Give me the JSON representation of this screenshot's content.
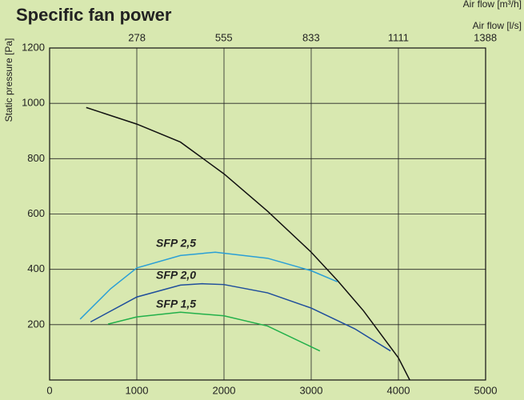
{
  "chart_data": {
    "type": "line",
    "title": "Specific fan power",
    "xlabel": "Air flow [m³/h]",
    "x2label": "Air flow [l/s]",
    "ylabel": "Static pressure [Pa]",
    "xlim": [
      0,
      5000
    ],
    "xticks": [
      0,
      1000,
      2000,
      3000,
      4000,
      5000
    ],
    "x2lim": [
      0,
      1388.9
    ],
    "x2ticks": [
      278,
      555,
      833,
      1111,
      1388
    ],
    "ylim": [
      0,
      1200
    ],
    "yticks": [
      200,
      400,
      600,
      800,
      1000,
      1200
    ],
    "grid": true,
    "series": [
      {
        "color": "#111111",
        "x": [
          420,
          1000,
          1500,
          2000,
          2500,
          3000,
          3300,
          3600,
          4000,
          4130
        ],
        "values": [
          985,
          925,
          860,
          745,
          610,
          462,
          360,
          250,
          80,
          0
        ]
      },
      {
        "name": "SFP 2,5",
        "color": "#2a9fd6",
        "x": [
          350,
          700,
          1000,
          1500,
          1900,
          2500,
          3000,
          3300
        ],
        "values": [
          220,
          330,
          405,
          450,
          462,
          440,
          395,
          355
        ]
      },
      {
        "name": "SFP 2,0",
        "color": "#1f4e9c",
        "x": [
          470,
          1000,
          1500,
          1750,
          2000,
          2500,
          3000,
          3500,
          3910
        ],
        "values": [
          210,
          300,
          343,
          348,
          345,
          315,
          260,
          185,
          105
        ]
      },
      {
        "name": "SFP 1,5",
        "color": "#22b04a",
        "x": [
          670,
          1000,
          1500,
          2000,
          2500,
          3100
        ],
        "values": [
          202,
          228,
          245,
          232,
          195,
          105
        ]
      }
    ]
  }
}
